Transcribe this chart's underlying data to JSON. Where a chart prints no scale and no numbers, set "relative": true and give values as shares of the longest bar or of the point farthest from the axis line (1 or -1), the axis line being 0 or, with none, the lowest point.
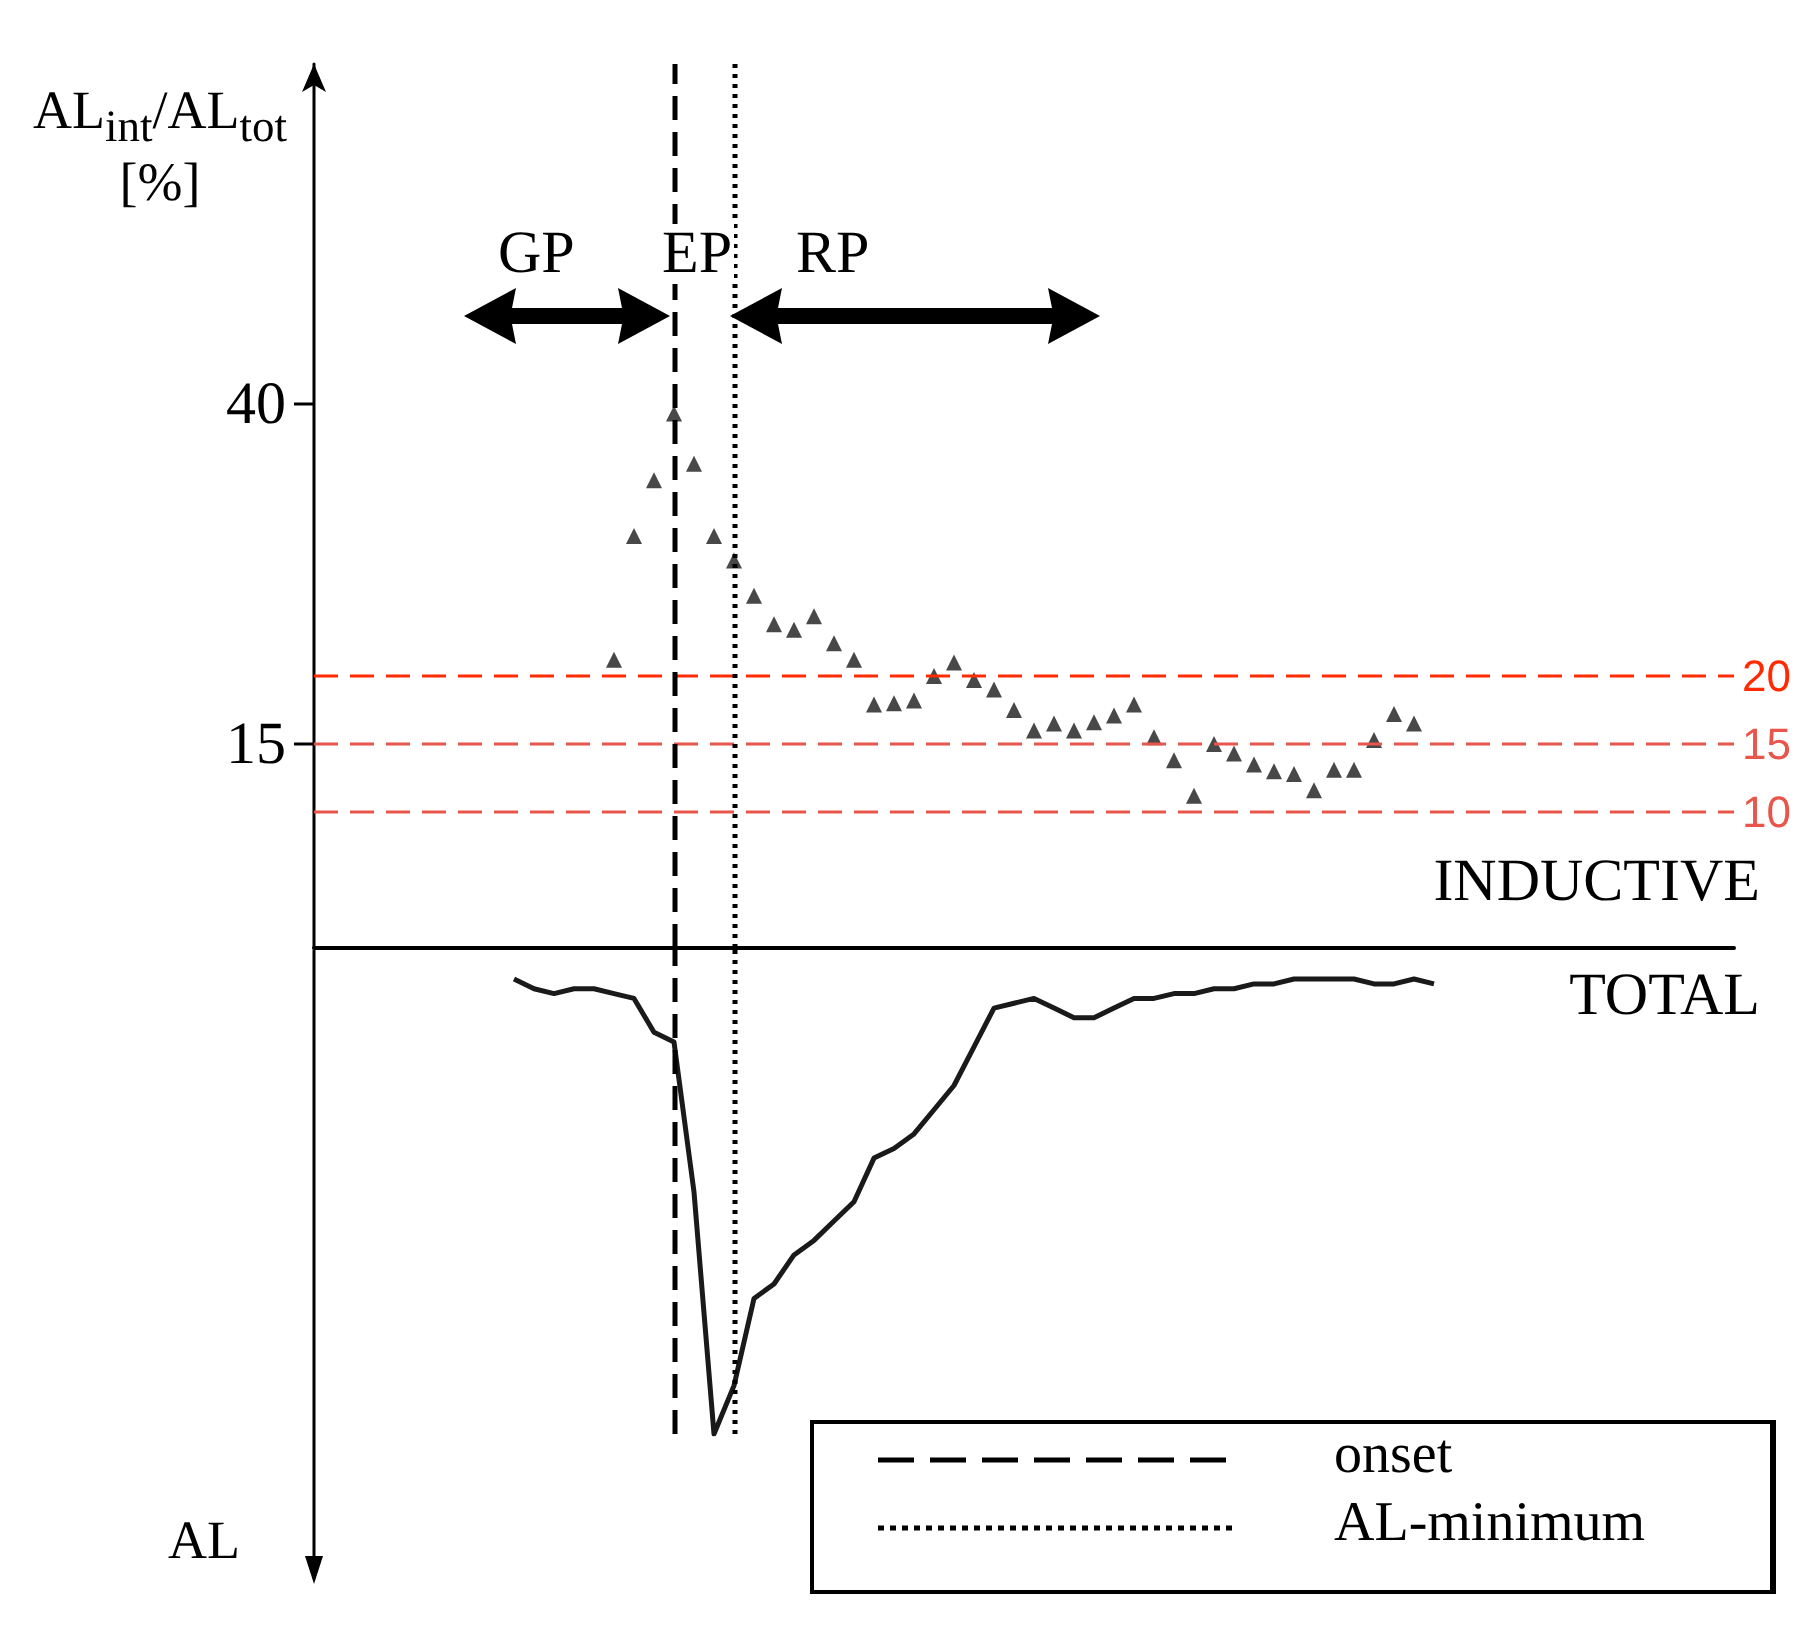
{
  "chart_data": [
    {
      "type": "scatter",
      "ylabel": "AL$_{int}$/AL$_{tot}$ [%]",
      "annotations": [
        "GP",
        "EP",
        "RP"
      ],
      "categories": [
        null,
        null,
        null,
        null,
        null,
        null,
        null,
        null,
        null,
        null,
        null,
        null,
        null,
        null,
        null,
        null,
        null,
        null,
        null,
        null,
        null,
        null,
        null,
        null,
        null,
        null,
        null,
        null,
        null,
        null,
        null,
        null,
        null,
        null,
        null,
        null,
        null,
        null,
        null,
        null,
        null,
        null,
        null,
        null,
        null,
        null,
        null,
        null,
        null,
        null,
        null,
        null,
        null,
        null,
        null,
        null,
        null,
        null,
        null,
        null,
        null,
        null,
        null,
        null,
        null,
        null,
        null,
        null,
        null,
        null,
        null,
        null
      ],
      "ylim": [
        0,
        65
      ],
      "yticks": [
        15,
        40
      ],
      "tick_labels": "y",
      "marker": "triangle",
      "series": [
        {
          "name": "INDUCTIVE",
          "color": "#1a1a1a",
          "values": [
            null,
            null,
            null,
            null,
            null,
            null,
            null,
            null,
            null,
            null,
            null,
            null,
            null,
            null,
            null,
            21.2,
            30.3,
            34.4,
            39.3,
            35.6,
            30.3,
            28.5,
            25.9,
            23.8,
            23.4,
            24.4,
            22.4,
            21.2,
            17.9,
            18.0,
            18.2,
            20.0,
            21.0,
            19.7,
            19.0,
            17.5,
            16.0,
            16.5,
            16.0,
            16.6,
            17.1,
            17.9,
            15.5,
            13.8,
            11.2,
            15.0,
            14.3,
            13.5,
            13.0,
            12.8,
            11.6,
            13.1,
            13.1,
            15.3,
            17.2,
            16.5,
            null,
            null,
            null,
            null,
            null,
            null,
            null,
            null,
            null,
            null,
            null,
            null,
            null,
            null,
            null,
            null
          ]
        }
      ],
      "ref_lines": [
        {
          "axis": "y",
          "value": 20,
          "label": "20",
          "color": "#ff2a00",
          "line_style": "dashed"
        },
        {
          "axis": "y",
          "value": 15,
          "label": "15",
          "color": "#e8554a",
          "line_style": "dashed"
        },
        {
          "axis": "y",
          "value": 10,
          "label": "10",
          "color": "#e8554a",
          "line_style": "dashed"
        }
      ]
    },
    {
      "type": "line",
      "ylabel": "AL",
      "relative": true,
      "categories": [
        null,
        null,
        null,
        null,
        null,
        null,
        null,
        null,
        null,
        null,
        null,
        null,
        null,
        null,
        null,
        null,
        null,
        null,
        null,
        null,
        null,
        null,
        null,
        null,
        null,
        null,
        null,
        null,
        null,
        null,
        null,
        null,
        null,
        null,
        null,
        null,
        null,
        null,
        null,
        null,
        null,
        null,
        null,
        null,
        null,
        null,
        null,
        null,
        null,
        null,
        null,
        null,
        null,
        null,
        null,
        null,
        null,
        null,
        null,
        null,
        null,
        null,
        null,
        null,
        null,
        null,
        null,
        null,
        null,
        null,
        null,
        null
      ],
      "tick_labels": false,
      "marker": "none",
      "line_style": "solid",
      "annotations": [
        "onset",
        "AL-minimum"
      ],
      "series": [
        {
          "name": "TOTAL",
          "color": "#1a1a1a",
          "values": [
            null,
            null,
            null,
            null,
            null,
            null,
            null,
            null,
            null,
            null,
            -0.06,
            -0.08,
            -0.09,
            -0.08,
            -0.08,
            -0.09,
            -0.1,
            -0.17,
            -0.19,
            -0.5,
            -1,
            -0.9,
            -0.72,
            -0.69,
            -0.63,
            -0.6,
            -0.56,
            -0.52,
            -0.43,
            -0.41,
            -0.38,
            -0.33,
            -0.28,
            -0.2,
            -0.12,
            -0.11,
            -0.1,
            -0.12,
            -0.14,
            -0.14,
            -0.12,
            -0.1,
            -0.1,
            -0.09,
            -0.09,
            -0.08,
            -0.08,
            -0.07,
            -0.07,
            -0.06,
            -0.06,
            -0.06,
            -0.06,
            -0.07,
            -0.07,
            -0.06,
            -0.07,
            null,
            null,
            null,
            null,
            null,
            null,
            null,
            null,
            null,
            null,
            null,
            null,
            null,
            null,
            null
          ]
        }
      ]
    }
  ]
}
